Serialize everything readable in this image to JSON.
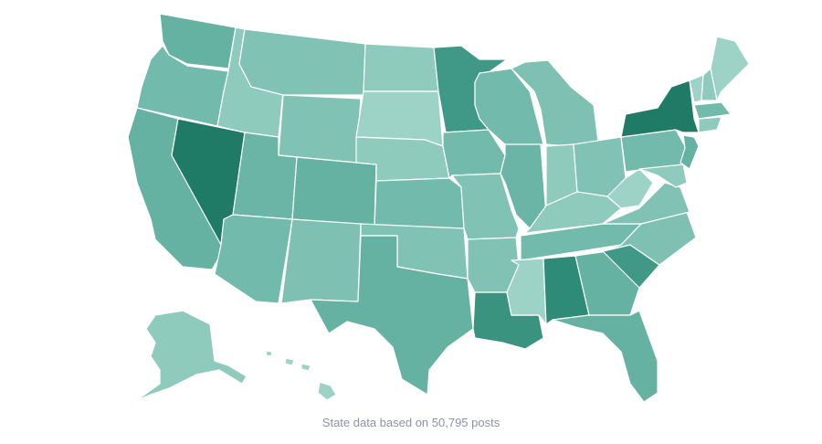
{
  "caption": "State data based on 50,795 posts"
}
